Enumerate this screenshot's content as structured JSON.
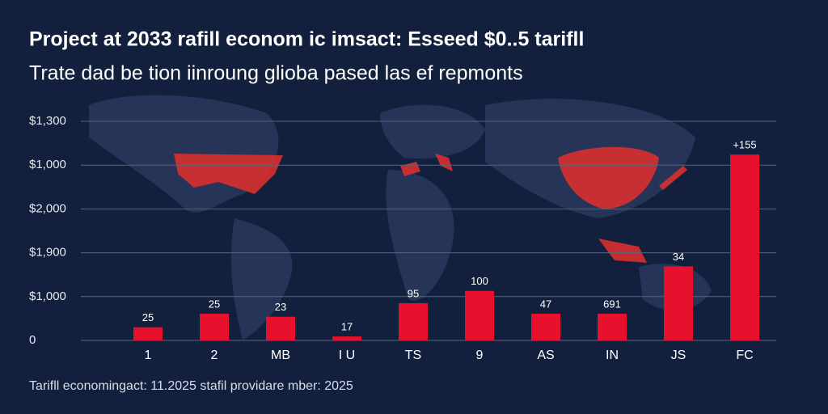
{
  "chart_data": {
    "type": "bar",
    "title": "Project at 2033 rafill econom ic imsact: Esseed $0..5 tarifll",
    "subtitle": "Trate dad be tion iinroung glioba pased las ef repmonts",
    "footer": "Tarifll economingact: 11.2025 stafil providare mber: 2025",
    "categories": [
      "1",
      "2",
      "MB",
      "I U",
      "TS",
      "9",
      "AS",
      "IN",
      "JS",
      "FC"
    ],
    "values": [
      0.3,
      0.61,
      0.54,
      0.09,
      0.85,
      1.13,
      0.61,
      0.61,
      1.69,
      4.24
    ],
    "annotations": [
      "25",
      "25",
      "23",
      "17",
      "95",
      "100",
      "47",
      "691",
      "34",
      "+155"
    ],
    "color": "#e8112d",
    "ylim": [
      0,
      5
    ],
    "yticks": [
      {
        "value": 0,
        "label": "0"
      },
      {
        "value": 1,
        "label": "$1,000"
      },
      {
        "value": 2,
        "label": "$1,900"
      },
      {
        "value": 3,
        "label": "$2,000"
      },
      {
        "value": 4,
        "label": "$1,000"
      },
      {
        "value": 5,
        "label": "$1,300"
      }
    ],
    "grid": true
  }
}
